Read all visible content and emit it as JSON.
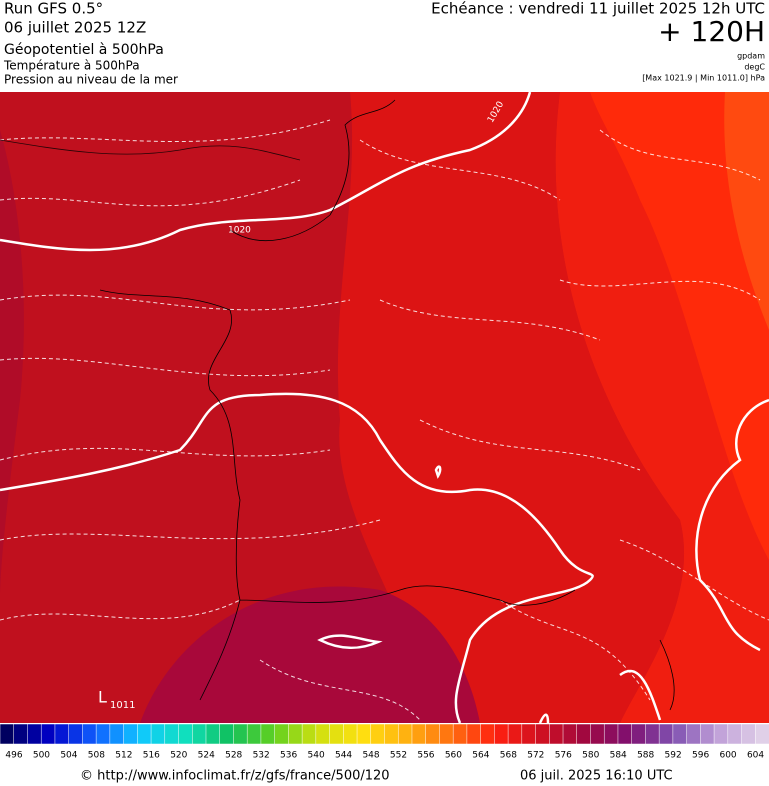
{
  "header": {
    "run": "Run GFS 0.5°",
    "date": "06 juillet 2025 12Z",
    "field1": "Géopotentiel à 500hPa",
    "field2": "Température à 500hPa",
    "field3": "Pression au niveau de la mer",
    "valid": "Echéance : vendredi 11 juillet 2025 12h UTC",
    "lead": "+ 120H",
    "unit1": "gpdam",
    "unit2": "degC",
    "range": "[Max 1021.9 | Min 1011.0] hPa"
  },
  "map": {
    "isobar_labels": [
      "1020",
      "1020"
    ],
    "low": {
      "symbol": "L",
      "value": "1011"
    }
  },
  "colorbar": {
    "labels": [
      496,
      500,
      504,
      508,
      512,
      516,
      520,
      524,
      528,
      532,
      536,
      540,
      544,
      548,
      552,
      556,
      560,
      564,
      568,
      572,
      576,
      580,
      584,
      588,
      592,
      596,
      600,
      604
    ]
  },
  "footer": {
    "url": "© http://www.infoclimat.fr/z/gfs/france/500/120",
    "time": "06 juil. 2025 16:10 UTC"
  }
}
